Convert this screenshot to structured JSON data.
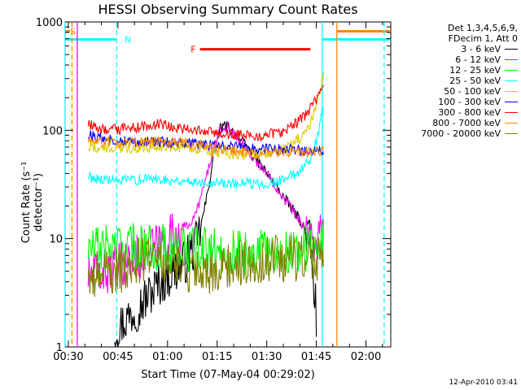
{
  "chart_data": {
    "type": "line",
    "title": "HESSI Observing Summary Count Rates",
    "xlabel": "Start Time (07-May-04 00:29:02)",
    "ylabel": "Count Rate (s⁻¹ detector⁻¹)",
    "yscale": "log",
    "ylim": [
      1,
      1000
    ],
    "xlim": [
      29.03,
      127.5
    ],
    "x_unit": "minutes after 00:00 UT",
    "xticks": [
      {
        "x": 30,
        "label": "00:30"
      },
      {
        "x": 45,
        "label": "00:45"
      },
      {
        "x": 60,
        "label": "01:00"
      },
      {
        "x": 75,
        "label": "01:15"
      },
      {
        "x": 90,
        "label": "01:30"
      },
      {
        "x": 105,
        "label": "01:45"
      },
      {
        "x": 120,
        "label": "02:00"
      }
    ],
    "yticks": [
      {
        "y": 1,
        "label": "1"
      },
      {
        "y": 10,
        "label": "10"
      },
      {
        "y": 100,
        "label": "100"
      },
      {
        "y": 1000,
        "label": "1000"
      }
    ],
    "legend_header": [
      "Det 1,3,4,5,6,9,",
      "FDecim 1, Att 0"
    ],
    "legend_position": "right of plot",
    "series": [
      {
        "name": "3 - 6 keV",
        "color": "#000000",
        "x": [
          44,
          52,
          58,
          65,
          69,
          72,
          74,
          76,
          78,
          80,
          84,
          88,
          92,
          96,
          100,
          103,
          105
        ],
        "y": [
          1.4,
          2.5,
          4,
          6,
          9,
          25,
          60,
          105,
          110,
          95,
          70,
          48,
          33,
          22,
          15,
          10,
          2
        ]
      },
      {
        "name": "6 - 12 keV",
        "color": "#ff00ff",
        "x": [
          36,
          42,
          50,
          58,
          64,
          68,
          71,
          74,
          76,
          78,
          82,
          86,
          90,
          94,
          98,
          102,
          105,
          107.2
        ],
        "y": [
          4.5,
          5,
          6.5,
          9,
          12,
          15,
          30,
          70,
          100,
          105,
          80,
          55,
          40,
          27,
          18,
          12,
          8.5,
          14
        ]
      },
      {
        "name": "12 - 25 keV",
        "color": "#00ff00",
        "x": [
          36,
          45,
          55,
          65,
          75,
          85,
          95,
          100,
          104,
          107.2
        ],
        "y": [
          8,
          8.5,
          8.5,
          8,
          7.5,
          7.5,
          7.5,
          8,
          8,
          10
        ]
      },
      {
        "name": "25 - 50 keV",
        "color": "#00ffff",
        "x": [
          36,
          45,
          55,
          65,
          75,
          85,
          92,
          96,
          100,
          104,
          106,
          107.2
        ],
        "y": [
          37,
          34,
          36,
          34,
          33,
          32,
          33,
          36,
          42,
          60,
          110,
          170
        ]
      },
      {
        "name": "50 - 100 keV",
        "color": "#ddcc00",
        "x": [
          36,
          45,
          55,
          65,
          75,
          85,
          92,
          96,
          100,
          103,
          105,
          107.2
        ],
        "y": [
          70,
          67,
          70,
          70,
          62,
          60,
          62,
          68,
          85,
          110,
          170,
          330
        ]
      },
      {
        "name": "100 - 300 keV",
        "color": "#0000ff",
        "x": [
          36,
          45,
          55,
          65,
          75,
          85,
          95,
          100,
          107.2
        ],
        "y": [
          90,
          80,
          78,
          76,
          72,
          68,
          66,
          65,
          65
        ]
      },
      {
        "name": "300 - 800 keV",
        "color": "#ff0000",
        "x": [
          36,
          42,
          50,
          58,
          65,
          72,
          80,
          88,
          94,
          98,
          102,
          105,
          107.2
        ],
        "y": [
          112,
          100,
          105,
          115,
          102,
          96,
          92,
          88,
          95,
          110,
          140,
          190,
          260
        ]
      },
      {
        "name": "800 - 7000 keV",
        "color": "#ff8800",
        "x": [
          36,
          45,
          55,
          65,
          75,
          85,
          95,
          100,
          107.2
        ],
        "y": [
          80,
          76,
          78,
          77,
          68,
          62,
          62,
          63,
          64
        ]
      },
      {
        "name": "7000 - 20000 keV",
        "color": "#808000",
        "x": [
          36,
          40,
          45,
          50,
          55,
          60,
          65,
          70,
          75,
          80,
          85,
          90,
          95,
          100,
          107.2
        ],
        "y": [
          5,
          4.5,
          5,
          6,
          6.5,
          6.5,
          5.5,
          4.5,
          5,
          6,
          6,
          6.5,
          6.5,
          6.5,
          6.5
        ]
      }
    ],
    "annotations": [
      {
        "label": "S",
        "color": "#ff8800",
        "x": 30.5,
        "y": 820
      },
      {
        "label": "N",
        "color": "#00ffff",
        "x": 47,
        "y": 690
      },
      {
        "label": "F",
        "color": "#ff0000",
        "x": 67,
        "y": 560
      }
    ],
    "markers": [
      {
        "kind": "segment",
        "color": "#ff8800",
        "x1": 29.03,
        "x2": 30.5,
        "y": 820
      },
      {
        "kind": "segment",
        "color": "#00ffff",
        "x1": 29.03,
        "x2": 44.6,
        "y": 690
      },
      {
        "kind": "segment",
        "color": "#ff0000",
        "x1": 69.8,
        "x2": 103.2,
        "y": 560
      },
      {
        "kind": "segment",
        "color": "#00ffff",
        "x1": 106.8,
        "x2": 127.5,
        "y": 690
      },
      {
        "kind": "segment",
        "color": "#ff8800",
        "x1": 111.2,
        "x2": 127.5,
        "y": 820
      },
      {
        "kind": "vline",
        "color": "#00ffff",
        "x": 29.03,
        "dashed": false
      },
      {
        "kind": "vline",
        "color": "#ff8800",
        "x": 31.1,
        "dashed": true
      },
      {
        "kind": "vline",
        "color": "#ff00ff",
        "x": 32.7,
        "dashed": false
      },
      {
        "kind": "vline",
        "color": "#00ffff",
        "x": 44.6,
        "dashed": true
      },
      {
        "kind": "vline",
        "color": "#00ffff",
        "x": 106.8,
        "dashed": false
      },
      {
        "kind": "vline",
        "color": "#ff8800",
        "x": 111.2,
        "dashed": false
      },
      {
        "kind": "vline",
        "color": "#00ffff",
        "x": 125.5,
        "dashed": true
      }
    ]
  },
  "timestamp": "12-Apr-2010 03:41"
}
